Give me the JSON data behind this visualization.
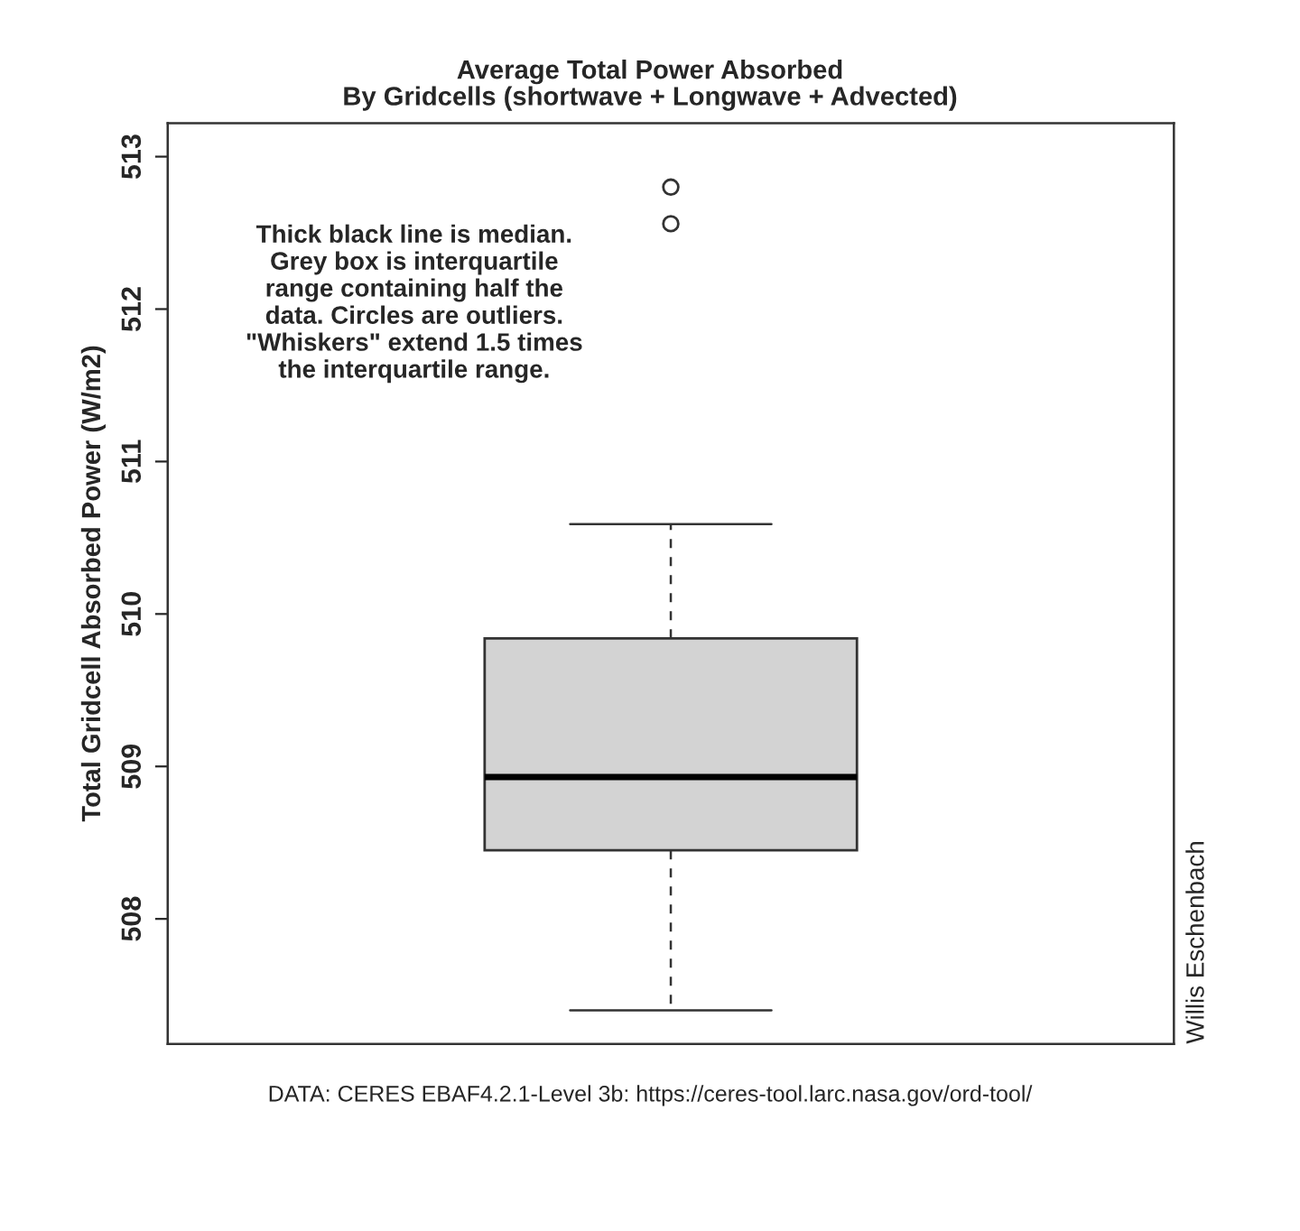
{
  "chart_data": {
    "type": "box",
    "title": "Average Total Power Absorbed\nBy Gridcells (shortwave + Longwave + Advected)",
    "ylabel": "Total Gridcell Absorbed Power (W/m2)",
    "categories": [
      null
    ],
    "boxes": [
      {
        "low": 507.4,
        "q1": 508.45,
        "median": 508.93,
        "q3": 509.84,
        "high": 510.59,
        "outliers": [
          512.8,
          512.56
        ]
      }
    ],
    "color": "#d3d3d3",
    "ylim": [
      507.18,
      513.22
    ],
    "yticks": [
      508,
      509,
      510,
      511,
      512,
      513
    ],
    "grid": false,
    "tick_labels": "y",
    "annotations": [
      "Thick black line is median.\nGrey box is interquartile\nrange containing half the\ndata. Circles are outliers.\n\"Whiskers\" extend 1.5 times\nthe interquartile range.",
      "Willis Eschenbach",
      "DATA: CERES EBAF4.2.1-Level 3b: https://ceres-tool.larc.nasa.gov/ord-tool/"
    ]
  }
}
